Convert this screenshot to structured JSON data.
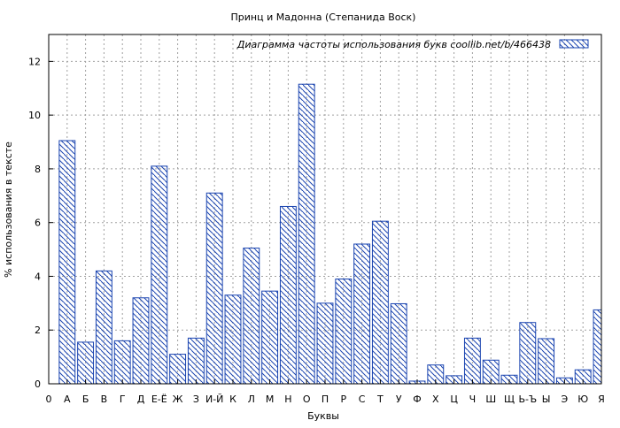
{
  "chart_data": {
    "type": "bar",
    "title": "Принц и Мадонна (Степанида Воск)",
    "xlabel": "Буквы",
    "ylabel": "% использования в тексте",
    "ylim": [
      0,
      13
    ],
    "yticks": [
      0,
      2,
      4,
      6,
      8,
      10,
      12
    ],
    "x_tick_labels": [
      "0",
      "А",
      "Б",
      "В",
      "Г",
      "Д",
      "Е-Ё",
      "Ж",
      "З",
      "И-Й",
      "К",
      "Л",
      "М",
      "Н",
      "О",
      "П",
      "Р",
      "С",
      "Т",
      "У",
      "Ф",
      "Х",
      "Ц",
      "Ч",
      "Ш",
      "Щ",
      "Ь-Ъ",
      "Ы",
      "Э",
      "Ю",
      "Я"
    ],
    "categories": [
      "А",
      "Б",
      "В",
      "Г",
      "Д",
      "Е-Ё",
      "Ж",
      "З",
      "И-Й",
      "К",
      "Л",
      "М",
      "Н",
      "О",
      "П",
      "Р",
      "С",
      "Т",
      "У",
      "Ф",
      "Х",
      "Ц",
      "Ч",
      "Ш",
      "Щ",
      "Ь-Ъ",
      "Ы",
      "Э",
      "Ю",
      "Я"
    ],
    "series": [
      {
        "name": "Диаграмма частоты использования букв  coollib.net/b/466438",
        "values": [
          9.05,
          1.55,
          4.2,
          1.6,
          3.2,
          8.1,
          1.1,
          1.7,
          7.1,
          3.3,
          5.05,
          3.45,
          6.6,
          11.15,
          3.0,
          3.9,
          5.2,
          6.05,
          2.98,
          0.1,
          0.7,
          0.3,
          1.7,
          0.88,
          0.32,
          2.28,
          1.68,
          0.22,
          0.52,
          2.75
        ]
      }
    ],
    "grid": true,
    "legend_position": "top-right",
    "colors": {
      "bar_stroke": "#1a44b0",
      "bar_fill": "#ffffff",
      "grid": "#a0a0a0"
    }
  }
}
